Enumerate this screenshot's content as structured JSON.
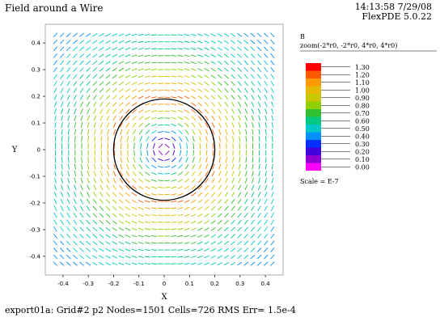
{
  "header": {
    "title": "Field around a Wire",
    "timestamp": "14:13:58 7/29/08",
    "software": "FlexPDE 5.0.22"
  },
  "footer": {
    "status": "export01a:  Grid#2  p2  Nodes=1501 Cells=726 RMS Err= 1.5e-4"
  },
  "chart_data": {
    "type": "vector-field",
    "title": "",
    "xlabel": "X",
    "ylabel": "Y",
    "xlim": [
      -0.47,
      0.47
    ],
    "ylim": [
      -0.47,
      0.47
    ],
    "x_ticks": [
      "-0.4",
      "-0.3",
      "-0.2",
      "-0.1",
      "0",
      "0.1",
      "0.2",
      "0.3",
      "0.4"
    ],
    "y_ticks": [
      "0.4",
      "0.3",
      "0.2",
      "0.1",
      "0",
      "-0.1",
      "-0.2",
      "-0.3",
      "-0.4"
    ],
    "x_tick_values": [
      -0.4,
      -0.3,
      -0.2,
      -0.1,
      0,
      0.1,
      0.2,
      0.3,
      0.4
    ],
    "y_tick_values": [
      0.4,
      0.3,
      0.2,
      0.1,
      0,
      -0.1,
      -0.2,
      -0.3,
      -0.4
    ],
    "wire_radius": 0.2,
    "wire_color": "#000000",
    "legend": {
      "variable": "B",
      "zoom": "zoom(-2*r0, -2*r0, 4*r0, 4*r0)",
      "scale": "Scale = E-7",
      "levels": [
        "1.30",
        "1.20",
        "1.10",
        "1.00",
        "0.90",
        "0.80",
        "0.70",
        "0.60",
        "0.50",
        "0.40",
        "0.30",
        "0.20",
        "0.10",
        "0.00"
      ],
      "colors": [
        "#ff0000",
        "#ff5a00",
        "#ff9a00",
        "#e6b800",
        "#c8c800",
        "#90d000",
        "#30c030",
        "#00c880",
        "#00c8c8",
        "#0090ff",
        "#0030ff",
        "#4000e0",
        "#9000d0",
        "#ff00ff"
      ]
    }
  }
}
